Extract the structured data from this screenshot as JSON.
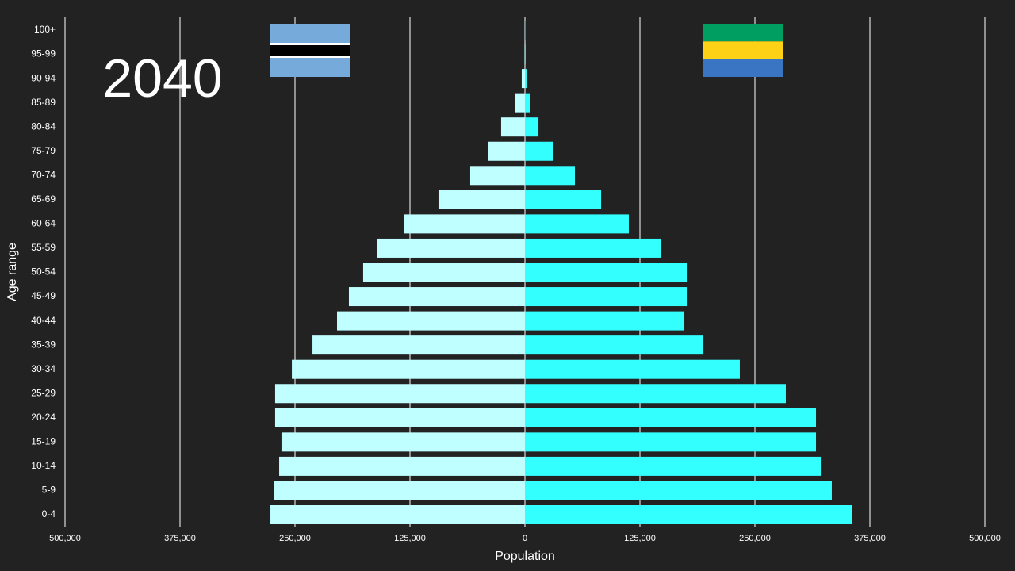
{
  "chart_data": {
    "type": "pyramid",
    "year": "2040",
    "xlabel": "Population",
    "ylabel": "Age range",
    "categories": [
      "100+",
      "95-99",
      "90-94",
      "85-89",
      "80-84",
      "75-79",
      "70-74",
      "65-69",
      "60-64",
      "55-59",
      "50-54",
      "45-49",
      "40-44",
      "35-39",
      "30-34",
      "25-29",
      "20-24",
      "15-19",
      "10-14",
      "5-9",
      "0-4"
    ],
    "series": [
      {
        "color": "#bfffff",
        "values": [
          -300,
          -500,
          -3500,
          -11200,
          -25900,
          -39700,
          -59500,
          -94000,
          -131900,
          -161200,
          -175900,
          -191400,
          -204300,
          -231000,
          -253400,
          -271600,
          -271600,
          -264700,
          -267200,
          -272400,
          -276700
        ]
      },
      {
        "color": "#33ffff",
        "values": [
          400,
          700,
          1700,
          5200,
          14700,
          30200,
          54300,
          82800,
          112900,
          148300,
          175900,
          175900,
          173300,
          194000,
          233600,
          283600,
          316400,
          316400,
          321600,
          333600,
          355200
        ]
      }
    ],
    "xlim": [
      -500000,
      500000
    ],
    "xticks": [
      {
        "value": -500000,
        "label": "500,000"
      },
      {
        "value": -375000,
        "label": "375,000"
      },
      {
        "value": -250000,
        "label": "250,000"
      },
      {
        "value": -125000,
        "label": "125,000"
      },
      0,
      {
        "value": 125000,
        "label": "125,000"
      },
      {
        "value": 250000,
        "label": "250,000"
      },
      {
        "value": 375000,
        "label": "375,000"
      },
      {
        "value": 500000,
        "label": "500,000"
      }
    ],
    "grid": true
  }
}
